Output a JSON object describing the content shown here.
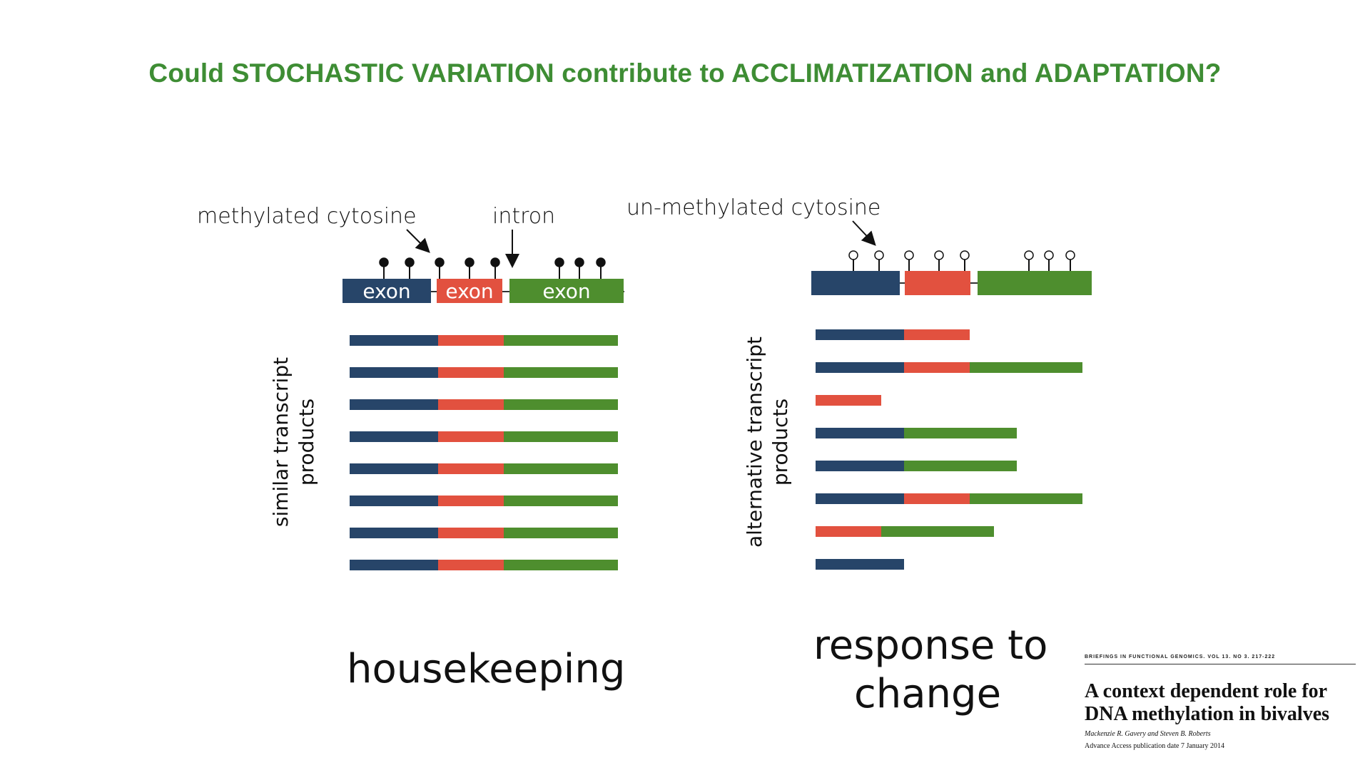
{
  "title": "Could STOCHASTIC VARIATION contribute to ACCLIMATIZATION and ADAPTATION?",
  "left": {
    "label_methylated": "methylated cytosine",
    "label_intron": "intron",
    "exon_label": "exon",
    "side_label_line1": "similar transcript",
    "side_label_line2": "products",
    "caption": "housekeeping",
    "transcripts": [
      [
        "blue",
        "red",
        "green"
      ],
      [
        "blue",
        "red",
        "green"
      ],
      [
        "blue",
        "red",
        "green"
      ],
      [
        "blue",
        "red",
        "green"
      ],
      [
        "blue",
        "red",
        "green"
      ],
      [
        "blue",
        "red",
        "green"
      ],
      [
        "blue",
        "red",
        "green"
      ],
      [
        "blue",
        "red",
        "green"
      ]
    ]
  },
  "right": {
    "label_unmethylated": "un-methylated cytosine",
    "side_label_line1": "alternative transcript",
    "side_label_line2": "products",
    "caption_line1": "response to",
    "caption_line2": "change",
    "transcripts": [
      [
        "blue",
        "red"
      ],
      [
        "blue",
        "red",
        "green"
      ],
      [
        "red"
      ],
      [
        "blue",
        "green"
      ],
      [
        "blue",
        "green"
      ],
      [
        "blue",
        "red",
        "green"
      ],
      [
        "red",
        "green"
      ],
      [
        "blue"
      ]
    ]
  },
  "colors": {
    "blue": "#274569",
    "red": "#e2513f",
    "green": "#4e8e2e",
    "title": "#3e8d34"
  },
  "paper": {
    "journal": "BRIEFINGS IN FUNCTIONAL GENOMICS. VOL 13. NO 3. 217-222",
    "title_line1": "A context dependent role for",
    "title_line2": "DNA methylation in bivalves",
    "authors": "Mackenzie R. Gavery and Steven B. Roberts",
    "date": "Advance Access publication date 7 January 2014"
  }
}
